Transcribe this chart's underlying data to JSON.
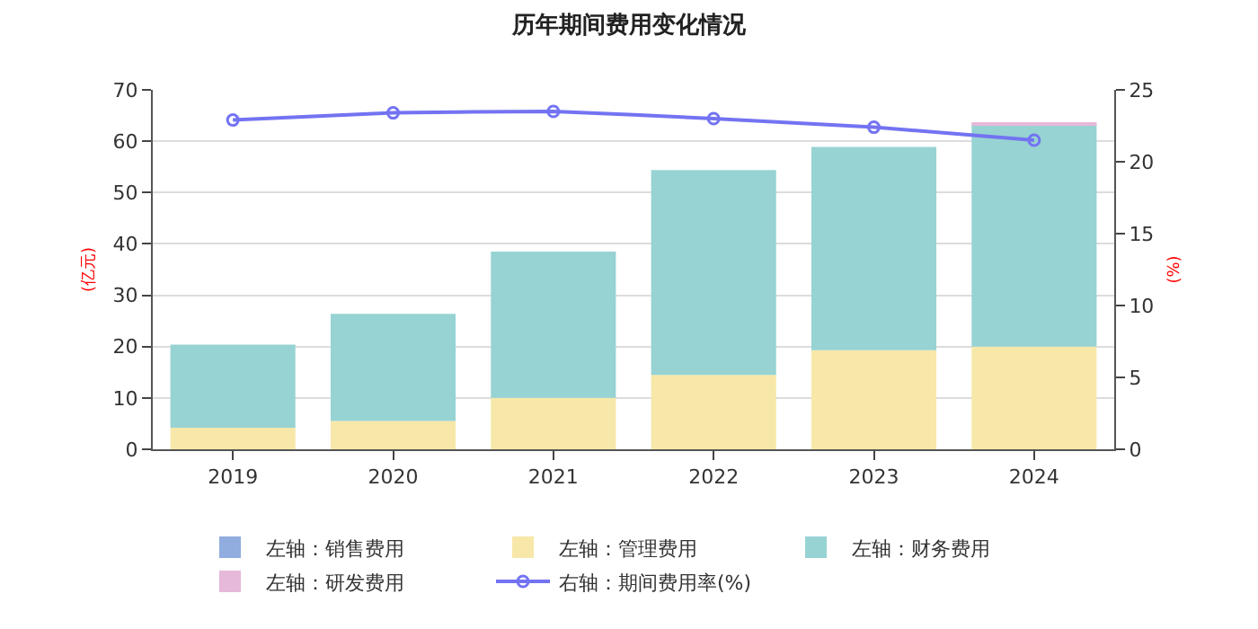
{
  "chart_data": {
    "type": "bar",
    "title": "历年期间费用变化情况",
    "ylabel": "(亿元)",
    "y2label": "(%)",
    "categories": [
      "2019",
      "2020",
      "2021",
      "2022",
      "2023",
      "2024"
    ],
    "stacked": true,
    "series": [
      {
        "name": "左轴：销售费用",
        "color": "#91acde",
        "values": [
          0,
          0,
          0,
          0,
          0,
          0
        ]
      },
      {
        "name": "左轴：管理费用",
        "color": "#f7e7a9",
        "values": [
          4.2,
          5.5,
          10.0,
          14.5,
          19.3,
          20.0
        ]
      },
      {
        "name": "左轴：财务费用",
        "color": "#97d3d3",
        "values": [
          16.2,
          20.9,
          28.5,
          39.9,
          39.6,
          43.3
        ]
      },
      {
        "name": "左轴：研发费用",
        "color": "#e6b8d9",
        "values": [
          0,
          0,
          0,
          null,
          null,
          0.3
        ]
      },
      {
        "name": "右轴：期间费用率(%)",
        "type": "line",
        "axis": "y2",
        "marker": "circle",
        "color": "#7373f2",
        "values": [
          22.9,
          23.4,
          23.5,
          23.0,
          22.4,
          21.5
        ]
      }
    ],
    "ylim": [
      0,
      70
    ],
    "yticks": [
      0,
      10,
      20,
      30,
      40,
      50,
      60,
      70
    ],
    "y2lim": [
      0,
      25
    ],
    "y2ticks": [
      0,
      5,
      10,
      15,
      20,
      25
    ],
    "grid": "y",
    "legend": "bottom"
  }
}
